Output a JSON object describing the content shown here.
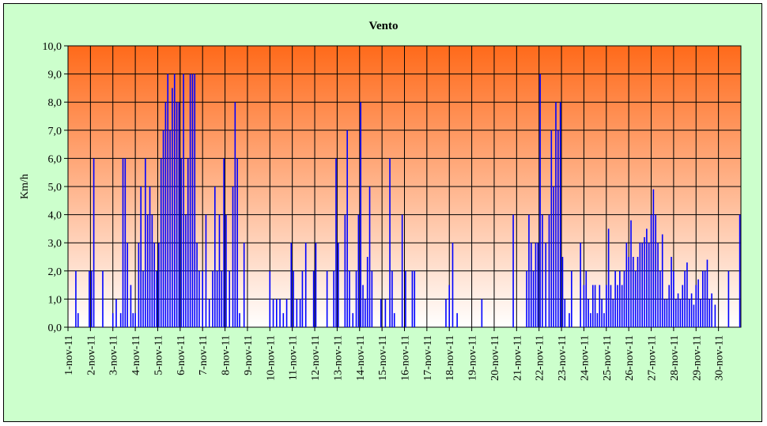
{
  "chart_data": {
    "type": "bar",
    "title": "Vento",
    "xlabel": "",
    "ylabel": "Km/h",
    "ylim": [
      0,
      10
    ],
    "y_ticks": [
      "0,0",
      "1,0",
      "2,0",
      "3,0",
      "4,0",
      "5,0",
      "6,0",
      "7,0",
      "8,0",
      "9,0",
      "10,0"
    ],
    "x_ticks": [
      "1-nov-11",
      "2-nov-11",
      "3-nov-11",
      "4-nov-11",
      "5-nov-11",
      "6-nov-11",
      "7-nov-11",
      "8-nov-11",
      "9-nov-11",
      "10-nov-11",
      "11-nov-11",
      "12-nov-11",
      "13-nov-11",
      "14-nov-11",
      "15-nov-11",
      "16-nov-11",
      "17-nov-11",
      "18-nov-11",
      "19-nov-11",
      "20-nov-11",
      "21-nov-11",
      "22-nov-11",
      "23-nov-11",
      "24-nov-11",
      "25-nov-11",
      "26-nov-11",
      "27-nov-11",
      "28-nov-11",
      "29-nov-11",
      "30-nov-11"
    ],
    "grid": true,
    "background_gradient": [
      "#ff6a1a",
      "#ffffff"
    ],
    "series_color": "#0000ff",
    "series": [
      {
        "values": [
          [
            1.35,
            2.0
          ],
          [
            1.45,
            0.5
          ],
          [
            1.95,
            2.0
          ],
          [
            2.05,
            2.0
          ],
          [
            2.15,
            6.0
          ],
          [
            2.55,
            2.0
          ],
          [
            3.0,
            0.5
          ],
          [
            3.15,
            1.0
          ],
          [
            3.35,
            0.5
          ],
          [
            3.45,
            6.0
          ],
          [
            3.55,
            6.0
          ],
          [
            3.65,
            3.0
          ],
          [
            3.8,
            1.5
          ],
          [
            3.9,
            0.5
          ],
          [
            4.0,
            0.5
          ],
          [
            4.15,
            3.0
          ],
          [
            4.25,
            5.0
          ],
          [
            4.35,
            2.0
          ],
          [
            4.45,
            6.0
          ],
          [
            4.55,
            4.0
          ],
          [
            4.65,
            5.0
          ],
          [
            4.75,
            4.0
          ],
          [
            4.85,
            3.0
          ],
          [
            4.95,
            2.0
          ],
          [
            5.05,
            3.0
          ],
          [
            5.15,
            6.0
          ],
          [
            5.25,
            7.0
          ],
          [
            5.35,
            8.0
          ],
          [
            5.45,
            9.0
          ],
          [
            5.55,
            7.0
          ],
          [
            5.65,
            8.5
          ],
          [
            5.75,
            9.0
          ],
          [
            5.85,
            8.0
          ],
          [
            5.95,
            8.0
          ],
          [
            6.05,
            6.0
          ],
          [
            6.15,
            9.0
          ],
          [
            6.25,
            4.0
          ],
          [
            6.35,
            6.0
          ],
          [
            6.45,
            9.0
          ],
          [
            6.55,
            9.0
          ],
          [
            6.65,
            9.0
          ],
          [
            6.75,
            3.0
          ],
          [
            6.85,
            2.0
          ],
          [
            7.0,
            2.0
          ],
          [
            7.15,
            4.0
          ],
          [
            7.3,
            1.0
          ],
          [
            7.45,
            2.0
          ],
          [
            7.55,
            5.0
          ],
          [
            7.65,
            2.0
          ],
          [
            7.75,
            4.0
          ],
          [
            7.85,
            2.0
          ],
          [
            7.95,
            6.0
          ],
          [
            8.05,
            4.0
          ],
          [
            8.2,
            2.0
          ],
          [
            8.35,
            5.0
          ],
          [
            8.45,
            8.0
          ],
          [
            8.55,
            6.0
          ],
          [
            8.65,
            0.5
          ],
          [
            8.85,
            3.0
          ],
          [
            10.0,
            2.0
          ],
          [
            10.15,
            1.0
          ],
          [
            10.3,
            1.0
          ],
          [
            10.45,
            1.0
          ],
          [
            10.6,
            0.5
          ],
          [
            10.75,
            1.0
          ],
          [
            10.95,
            3.0
          ],
          [
            11.05,
            2.0
          ],
          [
            11.2,
            1.0
          ],
          [
            11.35,
            1.0
          ],
          [
            11.45,
            2.0
          ],
          [
            11.6,
            3.0
          ],
          [
            11.95,
            2.0
          ],
          [
            12.05,
            3.0
          ],
          [
            12.55,
            2.0
          ],
          [
            12.85,
            2.0
          ],
          [
            12.95,
            6.0
          ],
          [
            13.05,
            3.0
          ],
          [
            13.35,
            4.0
          ],
          [
            13.45,
            7.0
          ],
          [
            13.55,
            2.0
          ],
          [
            13.7,
            0.5
          ],
          [
            13.85,
            2.0
          ],
          [
            13.95,
            4.0
          ],
          [
            14.05,
            8.0
          ],
          [
            14.15,
            1.5
          ],
          [
            14.25,
            1.0
          ],
          [
            14.35,
            2.5
          ],
          [
            14.45,
            5.0
          ],
          [
            14.55,
            2.0
          ],
          [
            14.95,
            1.0
          ],
          [
            15.15,
            1.0
          ],
          [
            15.35,
            6.0
          ],
          [
            15.45,
            2.0
          ],
          [
            15.55,
            0.5
          ],
          [
            15.9,
            4.0
          ],
          [
            16.05,
            2.0
          ],
          [
            16.35,
            2.0
          ],
          [
            16.45,
            2.0
          ],
          [
            17.85,
            1.0
          ],
          [
            18.0,
            1.5
          ],
          [
            18.15,
            3.0
          ],
          [
            18.35,
            0.5
          ],
          [
            19.45,
            1.0
          ],
          [
            20.85,
            4.0
          ],
          [
            21.45,
            2.0
          ],
          [
            21.55,
            4.0
          ],
          [
            21.65,
            3.0
          ],
          [
            21.75,
            2.0
          ],
          [
            21.85,
            3.0
          ],
          [
            21.95,
            3.0
          ],
          [
            22.05,
            9.0
          ],
          [
            22.15,
            4.0
          ],
          [
            22.3,
            3.0
          ],
          [
            22.45,
            4.0
          ],
          [
            22.55,
            7.0
          ],
          [
            22.65,
            5.0
          ],
          [
            22.75,
            8.0
          ],
          [
            22.85,
            7.0
          ],
          [
            22.95,
            8.0
          ],
          [
            23.05,
            2.5
          ],
          [
            23.15,
            1.0
          ],
          [
            23.35,
            0.5
          ],
          [
            23.45,
            2.0
          ],
          [
            23.85,
            3.0
          ],
          [
            24.0,
            1.5
          ],
          [
            24.1,
            2.0
          ],
          [
            24.2,
            1.0
          ],
          [
            24.3,
            0.5
          ],
          [
            24.4,
            1.5
          ],
          [
            24.5,
            1.5
          ],
          [
            24.6,
            0.5
          ],
          [
            24.7,
            1.5
          ],
          [
            24.8,
            1.0
          ],
          [
            24.9,
            0.5
          ],
          [
            25.0,
            1.5
          ],
          [
            25.1,
            3.5
          ],
          [
            25.2,
            1.5
          ],
          [
            25.3,
            1.0
          ],
          [
            25.4,
            2.0
          ],
          [
            25.5,
            1.5
          ],
          [
            25.6,
            2.0
          ],
          [
            25.7,
            1.5
          ],
          [
            25.8,
            2.0
          ],
          [
            25.9,
            3.0
          ],
          [
            26.0,
            2.5
          ],
          [
            26.1,
            3.8
          ],
          [
            26.2,
            2.5
          ],
          [
            26.3,
            2.0
          ],
          [
            26.4,
            2.5
          ],
          [
            26.5,
            3.0
          ],
          [
            26.6,
            3.0
          ],
          [
            26.7,
            3.2
          ],
          [
            26.8,
            3.5
          ],
          [
            26.9,
            3.0
          ],
          [
            27.0,
            4.0
          ],
          [
            27.1,
            4.9
          ],
          [
            27.2,
            4.0
          ],
          [
            27.3,
            3.0
          ],
          [
            27.4,
            2.0
          ],
          [
            27.5,
            3.3
          ],
          [
            27.6,
            1.0
          ],
          [
            27.7,
            1.0
          ],
          [
            27.8,
            1.5
          ],
          [
            27.9,
            2.5
          ],
          [
            28.0,
            2.0
          ],
          [
            28.1,
            1.0
          ],
          [
            28.2,
            1.2
          ],
          [
            28.3,
            1.0
          ],
          [
            28.4,
            1.5
          ],
          [
            28.5,
            2.0
          ],
          [
            28.6,
            2.3
          ],
          [
            28.7,
            1.0
          ],
          [
            28.8,
            1.2
          ],
          [
            28.9,
            0.8
          ],
          [
            29.0,
            1.5
          ],
          [
            29.1,
            1.7
          ],
          [
            29.2,
            1.0
          ],
          [
            29.3,
            2.0
          ],
          [
            29.4,
            2.0
          ],
          [
            29.5,
            2.4
          ],
          [
            29.6,
            1.0
          ],
          [
            29.7,
            1.2
          ],
          [
            29.85,
            0.8
          ],
          [
            30.45,
            2.0
          ],
          [
            30.95,
            4.0
          ]
        ]
      }
    ]
  }
}
